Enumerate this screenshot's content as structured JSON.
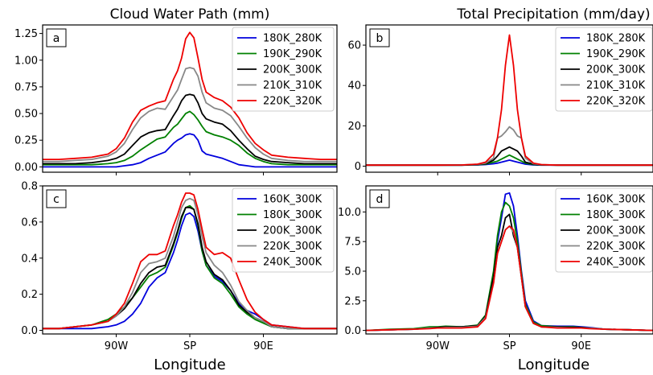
{
  "colors": {
    "blue": "#0000dd",
    "green": "#008000",
    "black": "#000000",
    "gray": "#888888",
    "red": "#ee0000"
  },
  "chart_data": [
    {
      "id": "a",
      "type": "line",
      "panel_label": "a",
      "title": "Cloud Water Path (mm)",
      "xlabel": "",
      "xticks": [
        "90W",
        "SP",
        "90E"
      ],
      "xlim": [
        -180,
        180
      ],
      "yticks": [
        "0.00",
        "0.25",
        "0.50",
        "0.75",
        "1.00",
        "1.25"
      ],
      "ylim": [
        -0.05,
        1.33
      ],
      "legend": "top-right",
      "x": [
        -180,
        -160,
        -140,
        -120,
        -100,
        -90,
        -80,
        -70,
        -60,
        -50,
        -40,
        -30,
        -20,
        -15,
        -10,
        -5,
        0,
        5,
        10,
        15,
        20,
        30,
        40,
        50,
        60,
        70,
        80,
        90,
        100,
        120,
        140,
        160,
        180
      ],
      "series": [
        {
          "name": "180K_280K",
          "color": "blue",
          "values": [
            0.0,
            0.0,
            0.0,
            0.0,
            0.0,
            0.0,
            0.01,
            0.02,
            0.04,
            0.08,
            0.11,
            0.14,
            0.22,
            0.25,
            0.27,
            0.3,
            0.31,
            0.3,
            0.25,
            0.15,
            0.12,
            0.1,
            0.08,
            0.05,
            0.02,
            0.01,
            0.0,
            0.0,
            0.0,
            0.0,
            0.0,
            0.0,
            0.0
          ]
        },
        {
          "name": "190K_290K",
          "color": "green",
          "values": [
            0.02,
            0.02,
            0.02,
            0.02,
            0.03,
            0.04,
            0.06,
            0.1,
            0.16,
            0.21,
            0.26,
            0.28,
            0.37,
            0.4,
            0.45,
            0.5,
            0.52,
            0.49,
            0.44,
            0.38,
            0.33,
            0.3,
            0.28,
            0.25,
            0.2,
            0.13,
            0.08,
            0.05,
            0.03,
            0.02,
            0.02,
            0.02,
            0.02
          ]
        },
        {
          "name": "200K_300K",
          "color": "black",
          "values": [
            0.03,
            0.03,
            0.03,
            0.04,
            0.06,
            0.08,
            0.12,
            0.2,
            0.28,
            0.32,
            0.34,
            0.35,
            0.48,
            0.54,
            0.62,
            0.67,
            0.68,
            0.67,
            0.6,
            0.5,
            0.45,
            0.42,
            0.4,
            0.34,
            0.25,
            0.17,
            0.1,
            0.07,
            0.05,
            0.04,
            0.03,
            0.03,
            0.03
          ]
        },
        {
          "name": "210K_310K",
          "color": "gray",
          "values": [
            0.05,
            0.05,
            0.06,
            0.07,
            0.1,
            0.14,
            0.22,
            0.35,
            0.46,
            0.52,
            0.55,
            0.54,
            0.66,
            0.72,
            0.82,
            0.92,
            0.93,
            0.92,
            0.85,
            0.7,
            0.6,
            0.55,
            0.53,
            0.48,
            0.38,
            0.27,
            0.18,
            0.12,
            0.08,
            0.06,
            0.05,
            0.05,
            0.05
          ]
        },
        {
          "name": "220K_320K",
          "color": "red",
          "values": [
            0.07,
            0.07,
            0.08,
            0.09,
            0.12,
            0.17,
            0.27,
            0.42,
            0.53,
            0.57,
            0.6,
            0.62,
            0.82,
            0.9,
            1.02,
            1.2,
            1.26,
            1.21,
            1.02,
            0.82,
            0.7,
            0.65,
            0.62,
            0.56,
            0.46,
            0.32,
            0.22,
            0.16,
            0.11,
            0.09,
            0.08,
            0.07,
            0.07
          ]
        }
      ]
    },
    {
      "id": "b",
      "type": "line",
      "panel_label": "b",
      "title": "Total Precipitation (mm/day)",
      "xlabel": "",
      "xticks": [
        "90W",
        "SP",
        "90E"
      ],
      "xlim": [
        -180,
        180
      ],
      "yticks": [
        "0",
        "20",
        "40",
        "60"
      ],
      "ylim": [
        -3,
        70
      ],
      "legend": "top-right",
      "x": [
        -180,
        -150,
        -120,
        -90,
        -60,
        -40,
        -30,
        -20,
        -15,
        -10,
        -5,
        0,
        5,
        10,
        15,
        20,
        30,
        40,
        60,
        90,
        120,
        150,
        180
      ],
      "series": [
        {
          "name": "180K_280K",
          "color": "blue",
          "values": [
            0.5,
            0.5,
            0.5,
            0.5,
            0.5,
            0.6,
            0.8,
            1.2,
            1.5,
            2.0,
            2.5,
            3.0,
            2.5,
            2.0,
            1.5,
            1.0,
            0.6,
            0.5,
            0.5,
            0.5,
            0.5,
            0.5,
            0.5
          ]
        },
        {
          "name": "190K_290K",
          "color": "green",
          "values": [
            0.5,
            0.5,
            0.5,
            0.5,
            0.5,
            0.7,
            1.0,
            2.0,
            2.5,
            3.5,
            4.5,
            5.5,
            4.5,
            3.5,
            2.5,
            1.5,
            0.8,
            0.6,
            0.5,
            0.5,
            0.5,
            0.5,
            0.5
          ]
        },
        {
          "name": "200K_300K",
          "color": "black",
          "values": [
            0.5,
            0.5,
            0.5,
            0.5,
            0.5,
            0.8,
            1.2,
            3.0,
            5.0,
            7.5,
            8.5,
            9.5,
            8.5,
            7.5,
            5.0,
            2.0,
            1.0,
            0.6,
            0.5,
            0.5,
            0.5,
            0.5,
            0.5
          ]
        },
        {
          "name": "210K_310K",
          "color": "gray",
          "values": [
            0.5,
            0.5,
            0.5,
            0.5,
            0.6,
            0.9,
            1.5,
            4.0,
            14.0,
            15.0,
            17.0,
            19.5,
            18.0,
            15.0,
            14.0,
            4.0,
            1.2,
            0.7,
            0.5,
            0.5,
            0.5,
            0.5,
            0.5
          ]
        },
        {
          "name": "220K_320K",
          "color": "red",
          "values": [
            0.5,
            0.5,
            0.5,
            0.5,
            0.6,
            1.0,
            2.0,
            6.0,
            14.0,
            28.0,
            50.0,
            65.0,
            50.0,
            28.0,
            14.0,
            5.0,
            1.5,
            0.8,
            0.5,
            0.5,
            0.5,
            0.5,
            0.5
          ]
        }
      ]
    },
    {
      "id": "c",
      "type": "line",
      "panel_label": "c",
      "title": "",
      "xlabel": "Longitude",
      "xticks": [
        "90W",
        "SP",
        "90E"
      ],
      "xlim": [
        -180,
        180
      ],
      "yticks": [
        "0.0",
        "0.2",
        "0.4",
        "0.6",
        "0.8"
      ],
      "ylim": [
        -0.02,
        0.8
      ],
      "legend": "top-right",
      "x": [
        -180,
        -160,
        -140,
        -120,
        -100,
        -90,
        -80,
        -70,
        -60,
        -50,
        -40,
        -30,
        -20,
        -15,
        -10,
        -5,
        0,
        5,
        10,
        15,
        20,
        30,
        40,
        50,
        60,
        70,
        80,
        90,
        100,
        120,
        140,
        160,
        180
      ],
      "series": [
        {
          "name": "160K_300K",
          "color": "blue",
          "values": [
            0.01,
            0.01,
            0.01,
            0.01,
            0.02,
            0.03,
            0.05,
            0.09,
            0.15,
            0.24,
            0.29,
            0.32,
            0.43,
            0.5,
            0.58,
            0.64,
            0.65,
            0.63,
            0.55,
            0.44,
            0.36,
            0.3,
            0.27,
            0.22,
            0.15,
            0.11,
            0.09,
            0.06,
            0.03,
            0.02,
            0.01,
            0.01,
            0.01
          ]
        },
        {
          "name": "180K_300K",
          "color": "green",
          "values": [
            0.01,
            0.01,
            0.02,
            0.03,
            0.06,
            0.09,
            0.13,
            0.18,
            0.24,
            0.3,
            0.32,
            0.35,
            0.47,
            0.54,
            0.62,
            0.68,
            0.69,
            0.67,
            0.58,
            0.44,
            0.36,
            0.29,
            0.26,
            0.2,
            0.13,
            0.09,
            0.06,
            0.04,
            0.02,
            0.01,
            0.01,
            0.01,
            0.01
          ]
        },
        {
          "name": "200K_300K",
          "color": "black",
          "values": [
            0.01,
            0.01,
            0.02,
            0.03,
            0.05,
            0.08,
            0.12,
            0.18,
            0.26,
            0.32,
            0.35,
            0.36,
            0.48,
            0.55,
            0.63,
            0.68,
            0.68,
            0.67,
            0.59,
            0.46,
            0.38,
            0.31,
            0.28,
            0.22,
            0.14,
            0.1,
            0.07,
            0.05,
            0.02,
            0.01,
            0.01,
            0.01,
            0.01
          ]
        },
        {
          "name": "220K_300K",
          "color": "gray",
          "values": [
            0.01,
            0.01,
            0.02,
            0.03,
            0.05,
            0.08,
            0.13,
            0.21,
            0.32,
            0.37,
            0.38,
            0.4,
            0.52,
            0.6,
            0.68,
            0.72,
            0.73,
            0.72,
            0.64,
            0.52,
            0.43,
            0.36,
            0.32,
            0.25,
            0.16,
            0.11,
            0.07,
            0.05,
            0.02,
            0.01,
            0.01,
            0.01,
            0.01
          ]
        },
        {
          "name": "240K_300K",
          "color": "red",
          "values": [
            0.01,
            0.01,
            0.02,
            0.03,
            0.05,
            0.09,
            0.15,
            0.26,
            0.38,
            0.42,
            0.42,
            0.44,
            0.58,
            0.64,
            0.71,
            0.76,
            0.76,
            0.75,
            0.67,
            0.56,
            0.46,
            0.42,
            0.43,
            0.4,
            0.28,
            0.17,
            0.1,
            0.06,
            0.03,
            0.02,
            0.01,
            0.01,
            0.01
          ]
        }
      ]
    },
    {
      "id": "d",
      "type": "line",
      "panel_label": "d",
      "title": "",
      "xlabel": "Longitude",
      "xticks": [
        "90W",
        "SP",
        "90E"
      ],
      "xlim": [
        -180,
        180
      ],
      "yticks": [
        "0.0",
        "2.5",
        "5.0",
        "7.5",
        "10.0"
      ],
      "ylim": [
        -0.3,
        12.2
      ],
      "legend": "top-right",
      "x": [
        -180,
        -150,
        -120,
        -100,
        -90,
        -80,
        -60,
        -40,
        -30,
        -20,
        -15,
        -10,
        -5,
        0,
        5,
        10,
        15,
        20,
        30,
        40,
        60,
        80,
        90,
        100,
        120,
        150,
        180
      ],
      "series": [
        {
          "name": "160K_300K",
          "color": "blue",
          "values": [
            0.0,
            0.05,
            0.1,
            0.2,
            0.2,
            0.25,
            0.3,
            0.4,
            1.2,
            4.5,
            7.5,
            9.5,
            11.5,
            11.6,
            10.5,
            8.0,
            5.0,
            2.5,
            0.8,
            0.4,
            0.35,
            0.35,
            0.3,
            0.25,
            0.1,
            0.05,
            0.0
          ]
        },
        {
          "name": "180K_300K",
          "color": "green",
          "values": [
            0.0,
            0.1,
            0.15,
            0.3,
            0.3,
            0.35,
            0.3,
            0.45,
            1.3,
            5.0,
            8.0,
            10.0,
            10.8,
            10.5,
            9.5,
            7.5,
            4.8,
            2.2,
            0.7,
            0.4,
            0.3,
            0.3,
            0.25,
            0.2,
            0.1,
            0.05,
            0.0
          ]
        },
        {
          "name": "200K_300K",
          "color": "black",
          "values": [
            0.0,
            0.05,
            0.1,
            0.2,
            0.25,
            0.3,
            0.3,
            0.4,
            1.2,
            4.5,
            7.0,
            8.0,
            9.5,
            9.8,
            8.0,
            7.0,
            4.5,
            2.0,
            0.6,
            0.3,
            0.3,
            0.25,
            0.25,
            0.2,
            0.1,
            0.05,
            0.0
          ]
        },
        {
          "name": "220K_300K",
          "color": "gray",
          "values": [
            0.0,
            0.05,
            0.1,
            0.2,
            0.2,
            0.25,
            0.25,
            0.35,
            1.1,
            4.0,
            6.5,
            7.5,
            8.5,
            8.8,
            8.3,
            7.0,
            4.5,
            2.0,
            0.6,
            0.3,
            0.25,
            0.2,
            0.2,
            0.2,
            0.1,
            0.05,
            0.0
          ]
        },
        {
          "name": "240K_300K",
          "color": "red",
          "values": [
            0.0,
            0.05,
            0.1,
            0.15,
            0.2,
            0.2,
            0.2,
            0.3,
            1.0,
            4.0,
            6.5,
            7.5,
            8.5,
            8.8,
            8.5,
            7.0,
            4.5,
            2.0,
            0.6,
            0.3,
            0.2,
            0.2,
            0.2,
            0.15,
            0.1,
            0.05,
            0.0
          ]
        }
      ]
    }
  ]
}
